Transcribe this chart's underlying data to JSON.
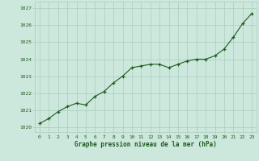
{
  "x": [
    0,
    1,
    2,
    3,
    4,
    5,
    6,
    7,
    8,
    9,
    10,
    11,
    12,
    13,
    14,
    15,
    16,
    17,
    18,
    19,
    20,
    21,
    22,
    23
  ],
  "y": [
    1020.2,
    1020.5,
    1020.9,
    1021.2,
    1021.4,
    1021.3,
    1021.8,
    1022.1,
    1022.6,
    1023.0,
    1023.5,
    1023.6,
    1023.7,
    1023.7,
    1023.5,
    1023.7,
    1023.9,
    1024.0,
    1024.0,
    1024.2,
    1024.6,
    1025.3,
    1026.1,
    1026.7
  ],
  "line_color": "#1a5c1a",
  "marker": "+",
  "marker_color": "#1a5c1a",
  "background_color": "#cce8dc",
  "grid_color": "#aaccbb",
  "xlabel": "Graphe pression niveau de la mer (hPa)",
  "xlabel_color": "#1a5c1a",
  "tick_color": "#1a5c1a",
  "ylabel_ticks": [
    1020,
    1021,
    1022,
    1023,
    1024,
    1025,
    1026,
    1027
  ],
  "xlim": [
    -0.5,
    23.5
  ],
  "ylim": [
    1019.7,
    1027.4
  ],
  "figsize": [
    3.2,
    2.0
  ],
  "dpi": 100
}
